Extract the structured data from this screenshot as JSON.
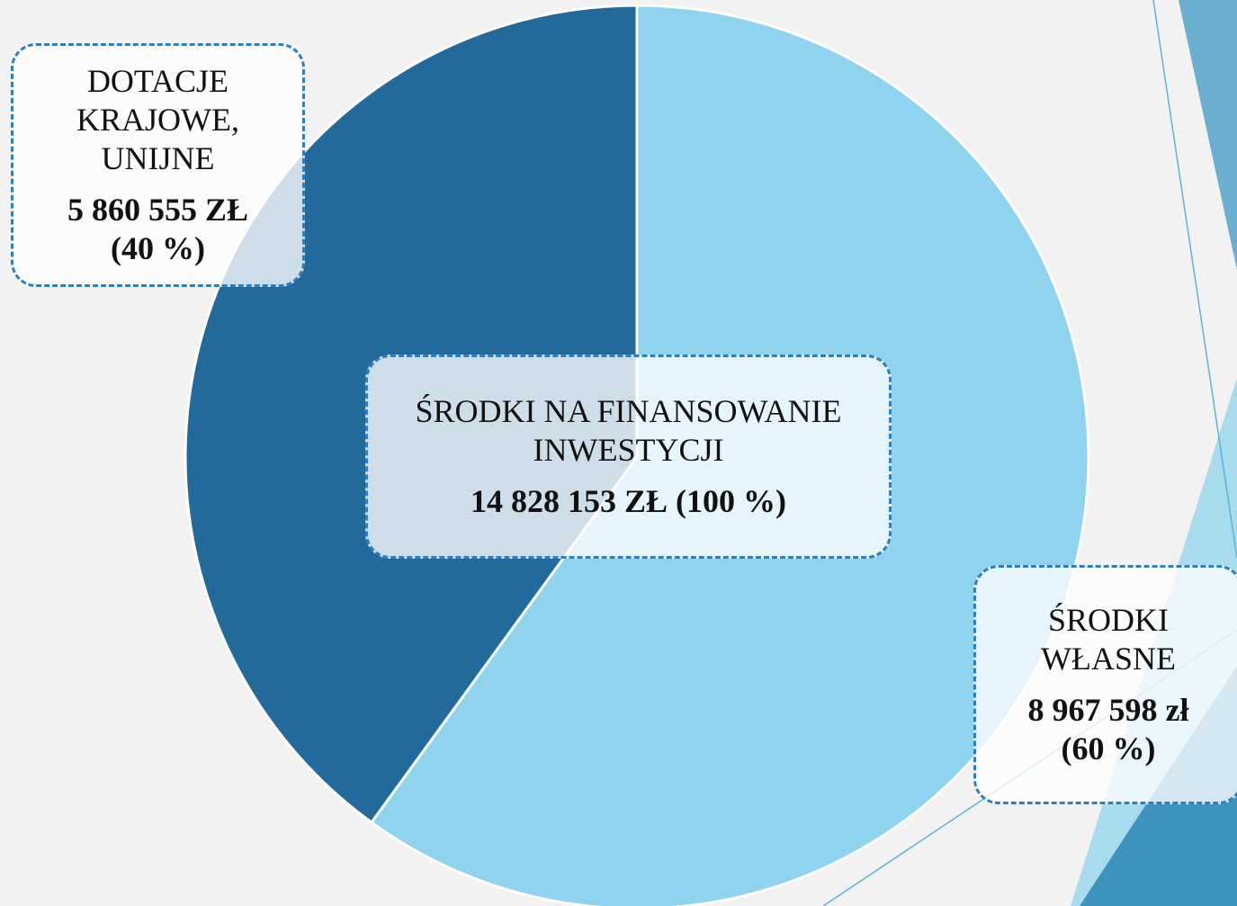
{
  "chart_data": {
    "type": "pie",
    "categories": [
      "ŚRODKI WŁASNE",
      "DOTACJE KRAJOWE, UNIJNE"
    ],
    "values": [
      60,
      40
    ],
    "value_labels": [
      "(60 %)",
      "(40 %)"
    ],
    "amounts": [
      "8 967 598 zł",
      "5 860 555 ZŁ"
    ],
    "colors": [
      "#8fd3ee",
      "#236a9c"
    ],
    "center_title": "ŚRODKI NA FINANSOWANIE INWESTYCJI",
    "center_value": "14 828 153 ZŁ (100 %)"
  }
}
